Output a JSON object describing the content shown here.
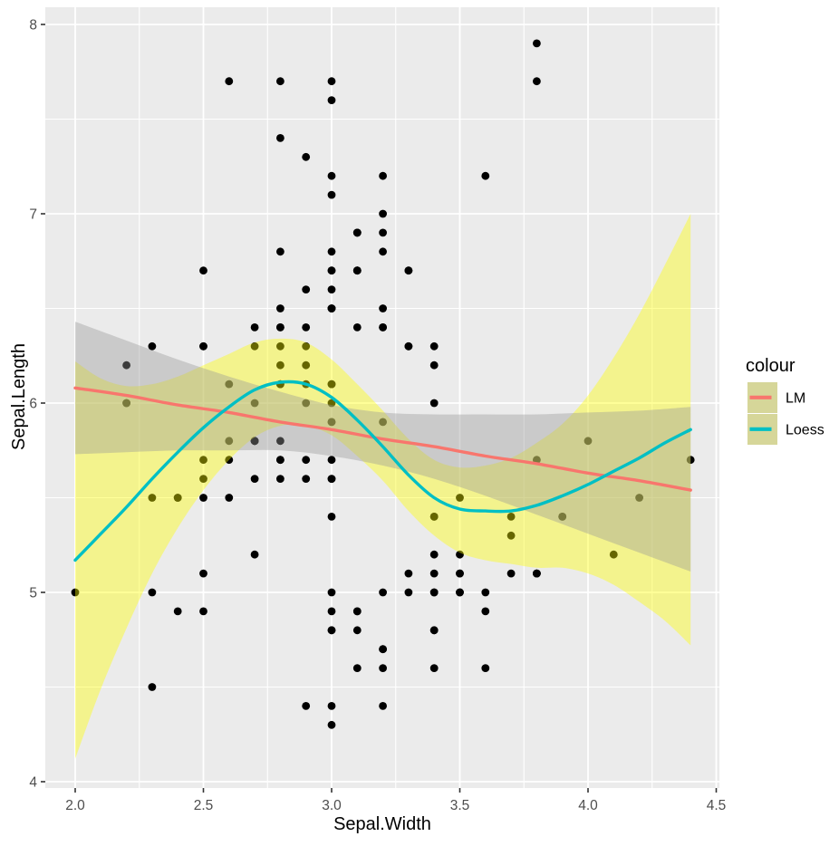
{
  "figure_type": "ggplot-scatter-with-smoothers",
  "axes": {
    "x": {
      "title": "Sepal.Width",
      "tick_values": [
        2.0,
        2.5,
        3.0,
        3.5,
        4.0,
        4.5
      ],
      "tick_labels": [
        "2.0",
        "2.5",
        "3.0",
        "3.5",
        "4.0",
        "4.5"
      ],
      "minor_values": [
        2.25,
        2.75,
        3.25,
        3.75,
        4.25
      ]
    },
    "y": {
      "title": "Sepal.Length",
      "tick_values": [
        4,
        5,
        6,
        7,
        8
      ],
      "tick_labels": [
        "4",
        "5",
        "6",
        "7",
        "8"
      ],
      "minor_values": [
        4.5,
        5.5,
        6.5,
        7.5
      ]
    }
  },
  "legend": {
    "title": "colour",
    "key_fill": "#D6D699",
    "items": [
      {
        "label": "LM",
        "line_color": "#F8766D"
      },
      {
        "label": "Loess",
        "line_color": "#00BFC4"
      }
    ]
  },
  "colors": {
    "panel_bg": "#EBEBEB",
    "grid": "#FFFFFF",
    "tick_mark": "#333333",
    "tick_text": "#4D4D4D",
    "point": "#000000",
    "lm_line": "#F8766D",
    "lm_ci": "#999999",
    "loess_line": "#00BFC4",
    "loess_ci": "#FFFF00",
    "ci_alpha": 0.4
  },
  "chart_data": {
    "type": "scatter",
    "title": "",
    "xlabel": "Sepal.Width",
    "ylabel": "Sepal.Length",
    "xlim": [
      1.88,
      4.52
    ],
    "ylim": [
      3.97,
      8.09
    ],
    "grid": true,
    "legend_position": "right",
    "points": [
      [
        3.5,
        5.1
      ],
      [
        3.0,
        4.9
      ],
      [
        3.2,
        4.7
      ],
      [
        3.1,
        4.6
      ],
      [
        3.6,
        5.0
      ],
      [
        3.9,
        5.4
      ],
      [
        3.4,
        4.6
      ],
      [
        3.4,
        5.0
      ],
      [
        2.9,
        4.4
      ],
      [
        3.1,
        4.9
      ],
      [
        3.7,
        5.4
      ],
      [
        3.4,
        4.8
      ],
      [
        3.0,
        4.8
      ],
      [
        3.0,
        4.3
      ],
      [
        4.0,
        5.8
      ],
      [
        4.4,
        5.7
      ],
      [
        3.9,
        5.4
      ],
      [
        3.5,
        5.1
      ],
      [
        3.8,
        5.7
      ],
      [
        3.8,
        5.1
      ],
      [
        3.4,
        5.4
      ],
      [
        3.7,
        5.1
      ],
      [
        3.6,
        4.6
      ],
      [
        3.3,
        5.1
      ],
      [
        3.4,
        4.8
      ],
      [
        3.0,
        5.0
      ],
      [
        3.4,
        5.0
      ],
      [
        3.5,
        5.2
      ],
      [
        3.4,
        5.2
      ],
      [
        3.2,
        4.7
      ],
      [
        3.1,
        4.8
      ],
      [
        3.4,
        5.4
      ],
      [
        4.1,
        5.2
      ],
      [
        4.2,
        5.5
      ],
      [
        3.1,
        4.9
      ],
      [
        3.2,
        5.0
      ],
      [
        3.5,
        5.5
      ],
      [
        3.6,
        4.9
      ],
      [
        3.0,
        4.4
      ],
      [
        3.4,
        5.1
      ],
      [
        3.5,
        5.0
      ],
      [
        2.3,
        4.5
      ],
      [
        3.2,
        4.4
      ],
      [
        3.5,
        5.0
      ],
      [
        3.8,
        5.1
      ],
      [
        3.0,
        4.8
      ],
      [
        3.8,
        5.1
      ],
      [
        3.2,
        4.6
      ],
      [
        3.7,
        5.3
      ],
      [
        3.3,
        5.0
      ],
      [
        3.2,
        7.0
      ],
      [
        3.2,
        6.4
      ],
      [
        3.1,
        6.9
      ],
      [
        2.3,
        5.5
      ],
      [
        2.8,
        6.5
      ],
      [
        2.8,
        5.7
      ],
      [
        3.3,
        6.3
      ],
      [
        2.4,
        4.9
      ],
      [
        2.9,
        6.6
      ],
      [
        2.7,
        5.2
      ],
      [
        2.0,
        5.0
      ],
      [
        3.0,
        5.9
      ],
      [
        2.2,
        6.0
      ],
      [
        2.9,
        6.1
      ],
      [
        2.9,
        5.6
      ],
      [
        3.1,
        6.7
      ],
      [
        3.0,
        5.6
      ],
      [
        2.7,
        5.8
      ],
      [
        2.2,
        6.2
      ],
      [
        2.5,
        5.6
      ],
      [
        3.2,
        5.9
      ],
      [
        2.8,
        6.1
      ],
      [
        2.5,
        6.3
      ],
      [
        2.8,
        6.1
      ],
      [
        2.9,
        6.4
      ],
      [
        3.0,
        6.6
      ],
      [
        2.8,
        6.8
      ],
      [
        3.0,
        6.7
      ],
      [
        2.9,
        6.0
      ],
      [
        2.6,
        5.7
      ],
      [
        2.4,
        5.5
      ],
      [
        2.4,
        5.5
      ],
      [
        2.7,
        5.8
      ],
      [
        2.7,
        6.0
      ],
      [
        3.0,
        5.4
      ],
      [
        3.4,
        6.0
      ],
      [
        3.1,
        6.7
      ],
      [
        2.3,
        6.3
      ],
      [
        3.0,
        5.6
      ],
      [
        2.5,
        5.5
      ],
      [
        2.6,
        5.5
      ],
      [
        3.0,
        6.1
      ],
      [
        2.6,
        5.8
      ],
      [
        2.3,
        5.0
      ],
      [
        2.7,
        5.6
      ],
      [
        3.0,
        5.7
      ],
      [
        2.9,
        5.7
      ],
      [
        2.9,
        6.2
      ],
      [
        2.5,
        5.1
      ],
      [
        2.8,
        5.7
      ],
      [
        3.3,
        6.3
      ],
      [
        2.7,
        5.8
      ],
      [
        3.0,
        7.1
      ],
      [
        2.9,
        6.3
      ],
      [
        3.0,
        6.5
      ],
      [
        3.0,
        7.6
      ],
      [
        2.5,
        4.9
      ],
      [
        2.9,
        7.3
      ],
      [
        2.5,
        6.7
      ],
      [
        3.6,
        7.2
      ],
      [
        3.2,
        6.5
      ],
      [
        2.7,
        6.4
      ],
      [
        3.0,
        6.8
      ],
      [
        2.5,
        5.7
      ],
      [
        2.8,
        5.8
      ],
      [
        3.2,
        6.4
      ],
      [
        3.0,
        6.5
      ],
      [
        3.8,
        7.7
      ],
      [
        2.6,
        7.7
      ],
      [
        2.2,
        6.0
      ],
      [
        3.2,
        6.9
      ],
      [
        2.8,
        5.6
      ],
      [
        2.8,
        7.7
      ],
      [
        2.7,
        6.3
      ],
      [
        3.3,
        6.7
      ],
      [
        3.2,
        7.2
      ],
      [
        2.8,
        6.2
      ],
      [
        3.0,
        6.1
      ],
      [
        2.8,
        6.4
      ],
      [
        3.0,
        7.2
      ],
      [
        2.8,
        7.4
      ],
      [
        3.8,
        7.9
      ],
      [
        2.8,
        6.4
      ],
      [
        2.8,
        6.3
      ],
      [
        2.6,
        6.1
      ],
      [
        3.0,
        7.7
      ],
      [
        3.4,
        6.3
      ],
      [
        3.1,
        6.4
      ],
      [
        3.0,
        6.0
      ],
      [
        3.1,
        6.9
      ],
      [
        3.1,
        6.7
      ],
      [
        3.1,
        6.9
      ],
      [
        2.7,
        5.8
      ],
      [
        3.2,
        6.8
      ],
      [
        3.3,
        6.7
      ],
      [
        3.0,
        6.7
      ],
      [
        2.5,
        6.3
      ],
      [
        3.0,
        6.5
      ],
      [
        3.4,
        6.2
      ],
      [
        3.0,
        5.9
      ]
    ],
    "smoothers": [
      {
        "name": "LM",
        "line_color": "#F8766D",
        "ci_color": "#999999",
        "x": [
          2.0,
          2.2,
          2.4,
          2.6,
          2.8,
          3.0,
          3.2,
          3.4,
          3.6,
          3.8,
          4.0,
          4.2,
          4.4
        ],
        "y": [
          6.08,
          6.04,
          5.99,
          5.95,
          5.9,
          5.86,
          5.81,
          5.77,
          5.72,
          5.68,
          5.63,
          5.59,
          5.54
        ],
        "lower": [
          5.73,
          5.74,
          5.75,
          5.75,
          5.75,
          5.72,
          5.67,
          5.6,
          5.51,
          5.41,
          5.31,
          5.21,
          5.11
        ],
        "upper": [
          6.43,
          6.33,
          6.23,
          6.14,
          6.06,
          5.99,
          5.95,
          5.94,
          5.94,
          5.94,
          5.95,
          5.96,
          5.98
        ]
      },
      {
        "name": "Loess",
        "line_color": "#00BFC4",
        "ci_color": "#FFFF00",
        "x": [
          2.0,
          2.1,
          2.2,
          2.3,
          2.4,
          2.5,
          2.6,
          2.7,
          2.8,
          2.9,
          3.0,
          3.1,
          3.2,
          3.3,
          3.4,
          3.5,
          3.6,
          3.7,
          3.8,
          3.9,
          4.0,
          4.1,
          4.2,
          4.3,
          4.4
        ],
        "y": [
          5.17,
          5.31,
          5.45,
          5.6,
          5.74,
          5.87,
          5.98,
          6.07,
          6.11,
          6.1,
          6.03,
          5.91,
          5.77,
          5.62,
          5.5,
          5.44,
          5.43,
          5.43,
          5.46,
          5.51,
          5.57,
          5.64,
          5.71,
          5.79,
          5.86
        ],
        "lower": [
          4.12,
          4.49,
          4.81,
          5.1,
          5.34,
          5.54,
          5.7,
          5.82,
          5.88,
          5.88,
          5.83,
          5.72,
          5.59,
          5.43,
          5.3,
          5.21,
          5.17,
          5.15,
          5.13,
          5.13,
          5.1,
          5.04,
          4.95,
          4.85,
          4.72
        ],
        "upper": [
          6.22,
          6.13,
          6.09,
          6.1,
          6.14,
          6.2,
          6.26,
          6.32,
          6.34,
          6.32,
          6.23,
          6.1,
          5.96,
          5.81,
          5.7,
          5.66,
          5.67,
          5.71,
          5.79,
          5.89,
          6.04,
          6.24,
          6.47,
          6.73,
          7.0
        ]
      }
    ]
  }
}
